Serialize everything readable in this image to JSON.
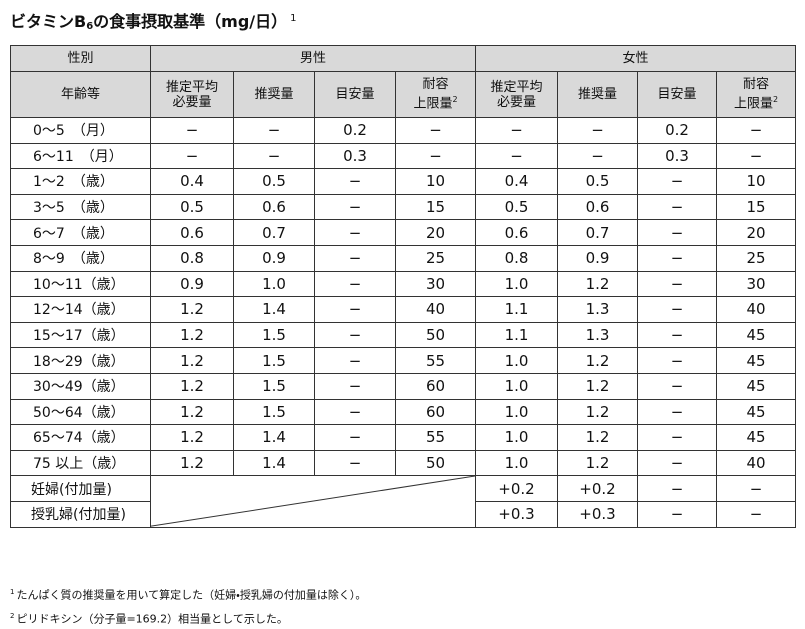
{
  "title": {
    "main": "ビタミンB",
    "sub": "6",
    "rest": "の食事摂取基準（mg/日）",
    "note": "1"
  },
  "table": {
    "header": {
      "sex": "性別",
      "male": "男性",
      "female": "女性",
      "age": "年齢等",
      "columns": [
        {
          "lines": [
            "推定平均",
            "必要量"
          ]
        },
        {
          "lines": [
            "推奨量"
          ]
        },
        {
          "lines": [
            "目安量"
          ]
        },
        {
          "lines": [
            "耐容",
            "上限量"
          ],
          "note": "2"
        },
        {
          "lines": [
            "推定平均",
            "必要量"
          ]
        },
        {
          "lines": [
            "推奨量"
          ]
        },
        {
          "lines": [
            "目安量"
          ]
        },
        {
          "lines": [
            "耐容",
            "上限量"
          ],
          "note": "2"
        }
      ]
    },
    "rows": [
      {
        "label": "0～5　（月）",
        "values": [
          "−",
          "−",
          "0.2",
          "−",
          "−",
          "−",
          "0.2",
          "−"
        ]
      },
      {
        "label": "6～11　（月）",
        "values": [
          "−",
          "−",
          "0.3",
          "−",
          "−",
          "−",
          "0.3",
          "−"
        ]
      },
      {
        "label": "1～2　（歳）",
        "values": [
          "0.4",
          "0.5",
          "−",
          "10",
          "0.4",
          "0.5",
          "−",
          "10"
        ]
      },
      {
        "label": "3～5　（歳）",
        "values": [
          "0.5",
          "0.6",
          "−",
          "15",
          "0.5",
          "0.6",
          "−",
          "15"
        ]
      },
      {
        "label": "6～7　（歳）",
        "values": [
          "0.6",
          "0.7",
          "−",
          "20",
          "0.6",
          "0.7",
          "−",
          "20"
        ]
      },
      {
        "label": "8～9　（歳）",
        "values": [
          "0.8",
          "0.9",
          "−",
          "25",
          "0.8",
          "0.9",
          "−",
          "25"
        ]
      },
      {
        "label": "10～11（歳）",
        "values": [
          "0.9",
          "1.0",
          "−",
          "30",
          "1.0",
          "1.2",
          "−",
          "30"
        ]
      },
      {
        "label": "12～14（歳）",
        "values": [
          "1.2",
          "1.4",
          "−",
          "40",
          "1.1",
          "1.3",
          "−",
          "40"
        ]
      },
      {
        "label": "15～17（歳）",
        "values": [
          "1.2",
          "1.5",
          "−",
          "50",
          "1.1",
          "1.3",
          "−",
          "45"
        ]
      },
      {
        "label": "18～29（歳）",
        "values": [
          "1.2",
          "1.5",
          "−",
          "55",
          "1.0",
          "1.2",
          "−",
          "45"
        ]
      },
      {
        "label": "30～49（歳）",
        "values": [
          "1.2",
          "1.5",
          "−",
          "60",
          "1.0",
          "1.2",
          "−",
          "45"
        ]
      },
      {
        "label": "50～64（歳）",
        "values": [
          "1.2",
          "1.5",
          "−",
          "60",
          "1.0",
          "1.2",
          "−",
          "45"
        ]
      },
      {
        "label": "65～74（歳）",
        "values": [
          "1.2",
          "1.4",
          "−",
          "55",
          "1.0",
          "1.2",
          "−",
          "45"
        ]
      },
      {
        "label": "75 以上（歳）",
        "values": [
          "1.2",
          "1.4",
          "−",
          "50",
          "1.0",
          "1.2",
          "−",
          "40"
        ]
      }
    ],
    "additions": [
      {
        "label": "妊婦(付加量)",
        "values": [
          "+0.2",
          "+0.2",
          "−",
          "−"
        ]
      },
      {
        "label": "授乳婦(付加量)",
        "values": [
          "+0.3",
          "+0.3",
          "−",
          "−"
        ]
      }
    ]
  },
  "footnotes": [
    {
      "mark": "1",
      "text": "たんぱく質の推奨量を用いて算定した（妊婦・授乳婦の付加量は除く）。"
    },
    {
      "mark": "2",
      "text": "ピリドキシン（分子量=169.2）相当量として示した。"
    }
  ]
}
